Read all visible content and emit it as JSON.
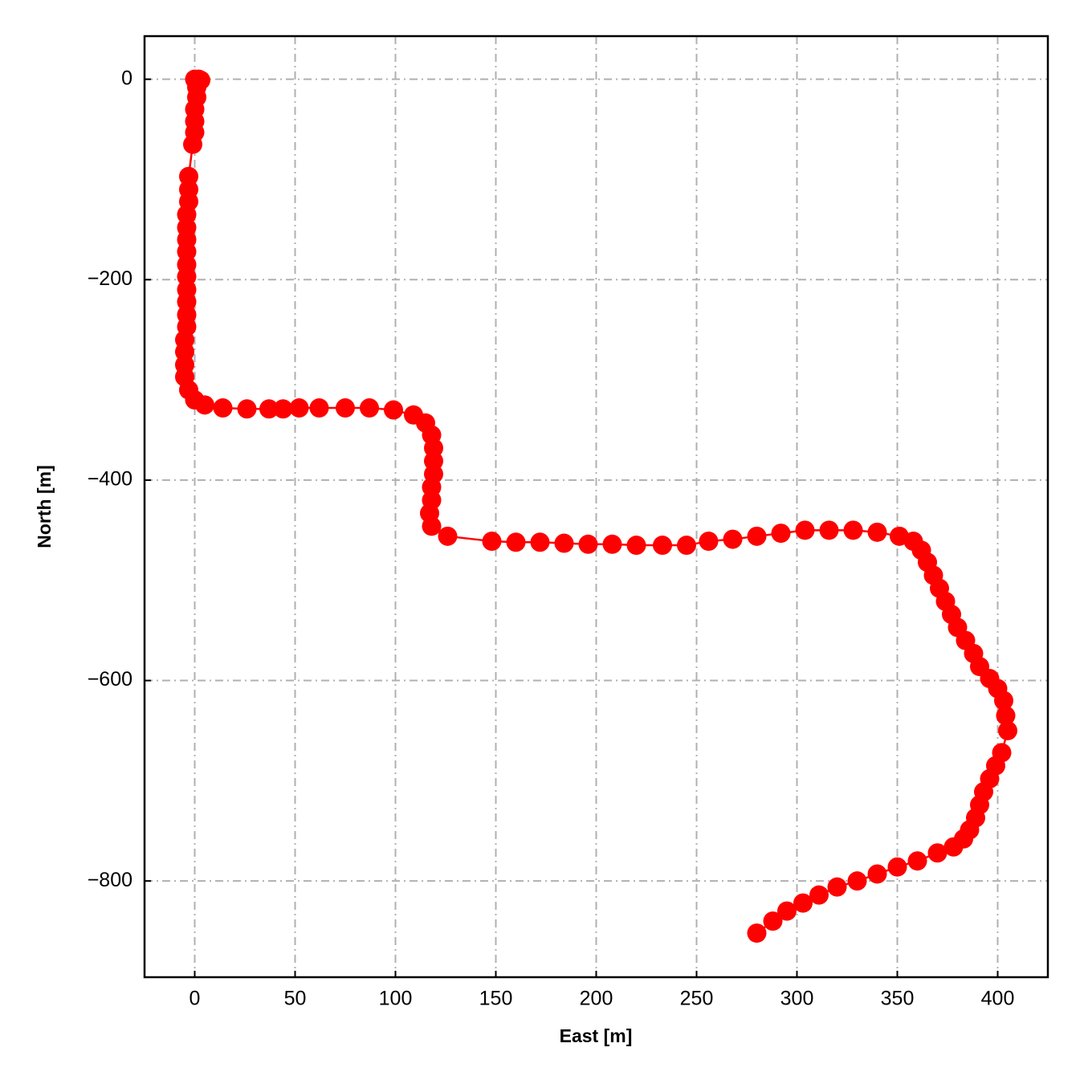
{
  "chart_data": {
    "type": "line",
    "x_label": "East [m]",
    "y_label": "North [m]",
    "color": "#ff0000",
    "markers": true,
    "grid": true,
    "xlim": [
      -25,
      425
    ],
    "ylim": [
      -896,
      43
    ],
    "xticks": [
      0,
      50,
      100,
      150,
      200,
      250,
      300,
      350,
      400
    ],
    "yticks": [
      0,
      {
        "value": -200,
        "label": "−200"
      },
      {
        "value": -400,
        "label": "−400"
      },
      {
        "value": -600,
        "label": "−600"
      },
      {
        "value": -800,
        "label": "−800"
      }
    ],
    "x": [
      0,
      2,
      3,
      1,
      1,
      0,
      0,
      0,
      -1,
      -3,
      -3,
      -3,
      -4,
      -4,
      -4,
      -4,
      -4,
      -4,
      -4,
      -4,
      -4,
      -4,
      -5,
      -5,
      -5,
      -5,
      -3,
      0,
      5,
      14,
      26,
      37,
      44,
      52,
      62,
      75,
      87,
      99,
      109,
      115,
      118,
      119,
      119,
      119,
      118,
      118,
      117,
      118,
      126,
      148,
      160,
      172,
      184,
      196,
      208,
      220,
      233,
      245,
      256,
      268,
      280,
      292,
      304,
      316,
      328,
      340,
      351,
      358,
      362,
      365,
      368,
      371,
      374,
      377,
      380,
      384,
      388,
      391,
      396,
      400,
      403,
      404,
      405,
      402,
      399,
      396,
      393,
      391,
      389,
      386,
      383,
      378,
      370,
      360,
      350,
      340,
      330,
      320,
      311,
      303,
      295,
      288,
      280
    ],
    "values": [
      0,
      0,
      -1,
      -8,
      -18,
      -30,
      -42,
      -53,
      -65,
      -97,
      -110,
      -122,
      -135,
      -148,
      -160,
      -172,
      -185,
      -197,
      -210,
      -222,
      -235,
      -247,
      -260,
      -272,
      -285,
      -297,
      -310,
      -320,
      -325,
      -328,
      -329,
      -329,
      -329,
      -328,
      -328,
      -328,
      -328,
      -330,
      -335,
      -343,
      -355,
      -368,
      -381,
      -394,
      -407,
      -420,
      -433,
      -446,
      -456,
      -461,
      -462,
      -462,
      -463,
      -464,
      -464,
      -465,
      -465,
      -465,
      -461,
      -459,
      -456,
      -453,
      -450,
      -450,
      -450,
      -452,
      -456,
      -461,
      -470,
      -482,
      -495,
      -508,
      -521,
      -534,
      -547,
      -560,
      -573,
      -586,
      -598,
      -608,
      -620,
      -635,
      -650,
      -672,
      -685,
      -698,
      -711,
      -724,
      -737,
      -749,
      -758,
      -766,
      -772,
      -780,
      -786,
      -793,
      -800,
      -806,
      -814,
      -822,
      -830,
      -840,
      -852
    ]
  }
}
